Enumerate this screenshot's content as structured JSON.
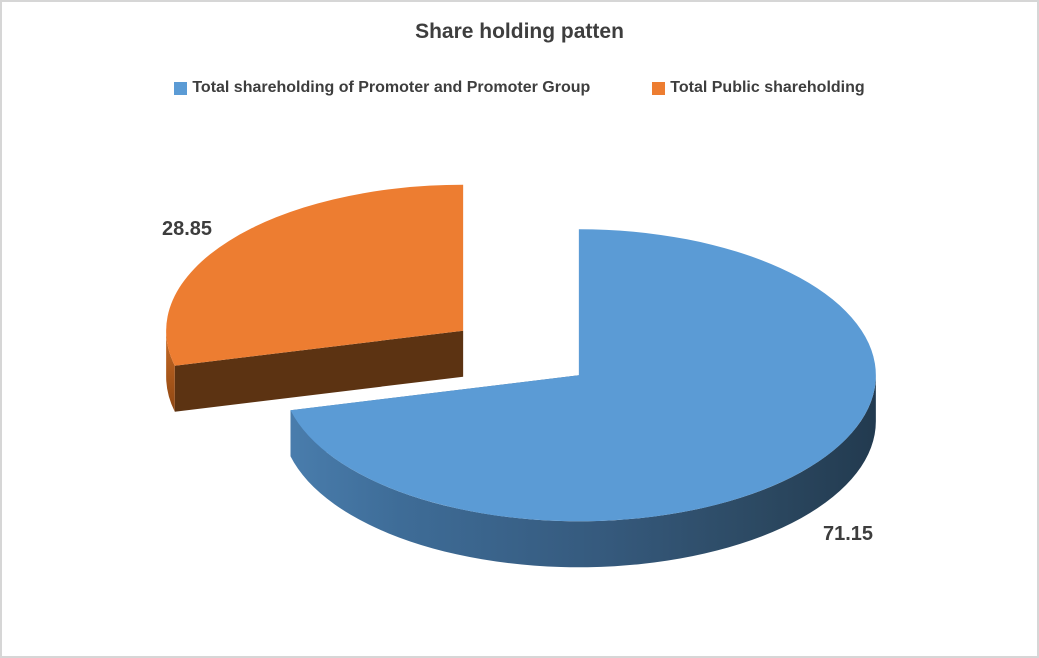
{
  "title": "Share holding patten",
  "legend": [
    {
      "label": "Total shareholding of Promoter and Promoter Group",
      "color": "#5B9BD5"
    },
    {
      "label": "Total Public shareholding",
      "color": "#ED7D31"
    }
  ],
  "chart_data": {
    "type": "pie",
    "style": "3d-exploded",
    "title": "Share holding patten",
    "labels": [
      "Total shareholding of Promoter and Promoter Group",
      "Total Public shareholding"
    ],
    "values": [
      71.15,
      28.85
    ],
    "value_labels": [
      "71.15",
      "28.85"
    ],
    "colors": [
      "#5B9BD5",
      "#ED7D31"
    ],
    "side_colors": [
      "#2F5070",
      "#5C3312"
    ],
    "start_angle_deg": 0,
    "direction": "clockwise",
    "legend_position": "top",
    "background": "#FFFFFF",
    "border_color": "#D6D6D6",
    "text_color": "#3E3E3E"
  }
}
